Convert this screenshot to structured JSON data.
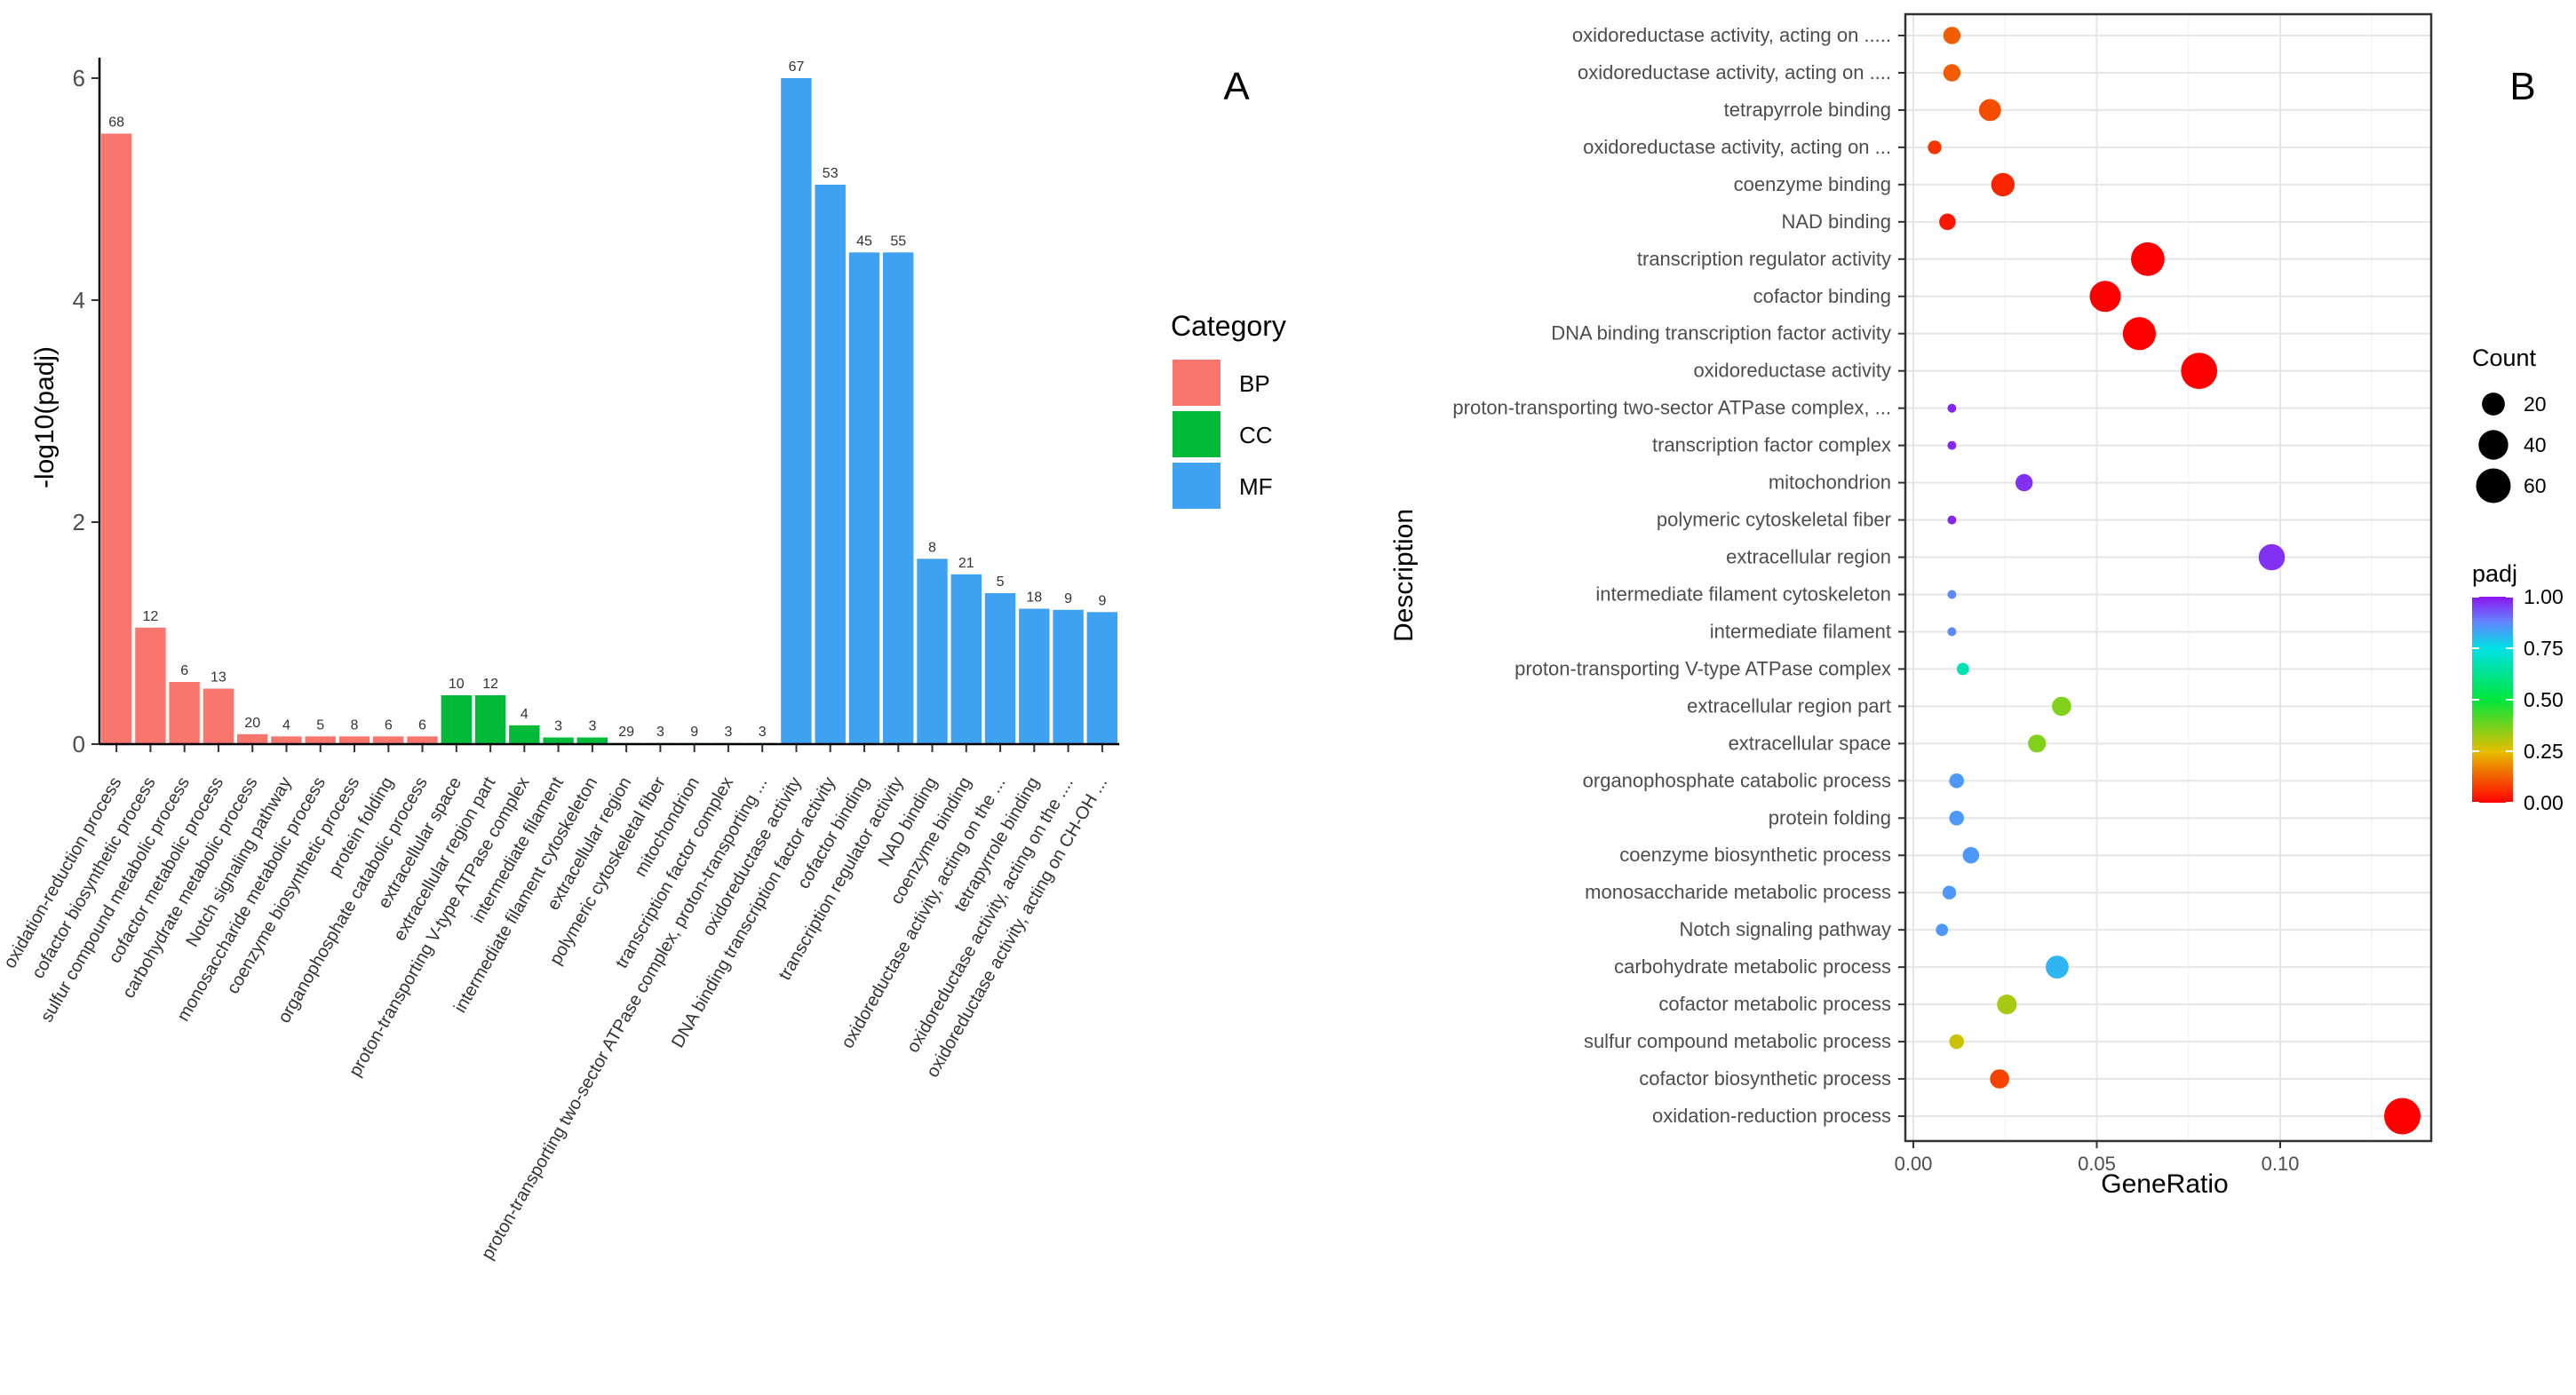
{
  "chart_data": [
    {
      "panel": "A",
      "type": "bar",
      "ylabel": "-log10(padj)",
      "xlabel": "",
      "ylim": [
        0,
        6.1
      ],
      "yticks": [
        0,
        2,
        4,
        6
      ],
      "legend": {
        "title": "Category",
        "placement": "right",
        "items": [
          {
            "label": "BP",
            "color": "#F8766D"
          },
          {
            "label": "CC",
            "color": "#00BA38"
          },
          {
            "label": "MF",
            "color": "#3EA1F2"
          }
        ]
      },
      "bars": [
        {
          "label": "oxidation-reduction process",
          "value": 5.5,
          "count": "68",
          "category": "BP"
        },
        {
          "label": "cofactor biosynthetic process",
          "value": 1.05,
          "count": "12",
          "category": "BP"
        },
        {
          "label": "sulfur compound metabolic process",
          "value": 0.56,
          "count": "6",
          "category": "BP"
        },
        {
          "label": "cofactor metabolic process",
          "value": 0.5,
          "count": "13",
          "category": "BP"
        },
        {
          "label": "carbohydrate metabolic process",
          "value": 0.09,
          "count": "20",
          "category": "BP"
        },
        {
          "label": "Notch signaling pathway",
          "value": 0.07,
          "count": "4",
          "category": "BP"
        },
        {
          "label": "monosaccharide metabolic process",
          "value": 0.07,
          "count": "5",
          "category": "BP"
        },
        {
          "label": "coenzyme biosynthetic process",
          "value": 0.07,
          "count": "8",
          "category": "BP"
        },
        {
          "label": "protein folding",
          "value": 0.07,
          "count": "6",
          "category": "BP"
        },
        {
          "label": "organophosphate catabolic process",
          "value": 0.07,
          "count": "6",
          "category": "BP"
        },
        {
          "label": "extracellular space",
          "value": 0.44,
          "count": "10",
          "category": "CC"
        },
        {
          "label": "extracellular region part",
          "value": 0.44,
          "count": "12",
          "category": "CC"
        },
        {
          "label": "proton-transporting V-type ATPase complex",
          "value": 0.17,
          "count": "4",
          "category": "CC"
        },
        {
          "label": "intermediate filament",
          "value": 0.06,
          "count": "3",
          "category": "CC"
        },
        {
          "label": "intermediate filament cytoskeleton",
          "value": 0.06,
          "count": "3",
          "category": "CC"
        },
        {
          "label": "extracellular region",
          "value": 0.01,
          "count": "29",
          "category": "CC"
        },
        {
          "label": "polymeric cytoskeletal fiber",
          "value": 0.01,
          "count": "3",
          "category": "CC"
        },
        {
          "label": "mitochondrion",
          "value": 0.01,
          "count": "9",
          "category": "CC"
        },
        {
          "label": "transcription factor complex",
          "value": 0.01,
          "count": "3",
          "category": "CC"
        },
        {
          "label": "proton-transporting two-sector ATPase complex, proton-transporting ...",
          "value": 0.01,
          "count": "3",
          "category": "CC"
        },
        {
          "label": "oxidoreductase activity",
          "value": 6.0,
          "count": "67",
          "category": "MF"
        },
        {
          "label": "DNA binding transcription factor activity",
          "value": 5.04,
          "count": "53",
          "category": "MF"
        },
        {
          "label": "cofactor binding",
          "value": 4.43,
          "count": "45",
          "category": "MF"
        },
        {
          "label": "transcription regulator activity",
          "value": 4.43,
          "count": "55",
          "category": "MF"
        },
        {
          "label": "NAD binding",
          "value": 1.67,
          "count": "8",
          "category": "MF"
        },
        {
          "label": "coenzyme binding",
          "value": 1.53,
          "count": "21",
          "category": "MF"
        },
        {
          "label": "oxidoreductase activity, acting on the ...",
          "value": 1.36,
          "count": "5",
          "category": "MF"
        },
        {
          "label": "tetrapyrrole binding",
          "value": 1.22,
          "count": "18",
          "category": "MF"
        },
        {
          "label": "oxidoreductase activity, acting on the ....",
          "value": 1.21,
          "count": "9",
          "category": "MF"
        },
        {
          "label": "oxidoreductase activity, acting on CH-OH ...",
          "value": 1.19,
          "count": "9",
          "category": "MF"
        }
      ]
    },
    {
      "panel": "B",
      "type": "scatter",
      "xlabel": "GeneRatio",
      "ylabel": "Description",
      "xlim": [
        0,
        0.138
      ],
      "xticks": [
        "0.00",
        "0.05",
        "0.10"
      ],
      "size_legend": {
        "title": "Count",
        "values": [
          20,
          40,
          60
        ]
      },
      "color_legend": {
        "title": "padj",
        "ticks": [
          "1.00",
          "0.75",
          "0.50",
          "0.25",
          "0.00"
        ],
        "range": [
          0,
          1
        ]
      },
      "points": [
        {
          "description": "oxidoreductase activity, acting on .....",
          "gene_ratio": 0.0105,
          "count": 9,
          "padj": 0.12
        },
        {
          "description": "oxidoreductase activity, acting on ....",
          "gene_ratio": 0.0105,
          "count": 9,
          "padj": 0.12
        },
        {
          "description": "tetrapyrrole binding",
          "gene_ratio": 0.0209,
          "count": 18,
          "padj": 0.1
        },
        {
          "description": "oxidoreductase activity, acting on ...",
          "gene_ratio": 0.0058,
          "count": 5,
          "padj": 0.07
        },
        {
          "description": "coenzyme binding",
          "gene_ratio": 0.0244,
          "count": 21,
          "padj": 0.05
        },
        {
          "description": "NAD binding",
          "gene_ratio": 0.0093,
          "count": 8,
          "padj": 0.03
        },
        {
          "description": "transcription regulator activity",
          "gene_ratio": 0.0639,
          "count": 55,
          "padj": 0.0
        },
        {
          "description": "cofactor binding",
          "gene_ratio": 0.0523,
          "count": 45,
          "padj": 0.0
        },
        {
          "description": "DNA binding transcription factor activity",
          "gene_ratio": 0.0616,
          "count": 53,
          "padj": 0.0
        },
        {
          "description": "oxidoreductase activity",
          "gene_ratio": 0.0779,
          "count": 67,
          "padj": 0.0
        },
        {
          "description": "proton-transporting two-sector ATPase complex, ...",
          "gene_ratio": 0.0105,
          "count": 3,
          "padj": 0.98
        },
        {
          "description": "transcription factor complex",
          "gene_ratio": 0.0105,
          "count": 3,
          "padj": 0.98
        },
        {
          "description": "mitochondrion",
          "gene_ratio": 0.0302,
          "count": 9,
          "padj": 0.97
        },
        {
          "description": "polymeric cytoskeletal fiber",
          "gene_ratio": 0.0105,
          "count": 3,
          "padj": 0.98
        },
        {
          "description": "extracellular region",
          "gene_ratio": 0.0977,
          "count": 29,
          "padj": 0.97
        },
        {
          "description": "intermediate filament cytoskeleton",
          "gene_ratio": 0.0105,
          "count": 3,
          "padj": 0.87
        },
        {
          "description": "intermediate filament",
          "gene_ratio": 0.0105,
          "count": 3,
          "padj": 0.87
        },
        {
          "description": "proton-transporting V-type ATPase complex",
          "gene_ratio": 0.0135,
          "count": 4,
          "padj": 0.68
        },
        {
          "description": "extracellular region part",
          "gene_ratio": 0.0404,
          "count": 12,
          "padj": 0.36
        },
        {
          "description": "extracellular space",
          "gene_ratio": 0.0337,
          "count": 10,
          "padj": 0.36
        },
        {
          "description": "organophosphate catabolic process",
          "gene_ratio": 0.0118,
          "count": 6,
          "padj": 0.85
        },
        {
          "description": "protein folding",
          "gene_ratio": 0.0118,
          "count": 6,
          "padj": 0.85
        },
        {
          "description": "coenzyme biosynthetic process",
          "gene_ratio": 0.0157,
          "count": 8,
          "padj": 0.85
        },
        {
          "description": "monosaccharide metabolic process",
          "gene_ratio": 0.0098,
          "count": 5,
          "padj": 0.85
        },
        {
          "description": "Notch signaling pathway",
          "gene_ratio": 0.0078,
          "count": 4,
          "padj": 0.85
        },
        {
          "description": "carbohydrate metabolic process",
          "gene_ratio": 0.0392,
          "count": 20,
          "padj": 0.81
        },
        {
          "description": "cofactor metabolic process",
          "gene_ratio": 0.0255,
          "count": 13,
          "padj": 0.32
        },
        {
          "description": "sulfur compound metabolic process",
          "gene_ratio": 0.0118,
          "count": 6,
          "padj": 0.28
        },
        {
          "description": "cofactor biosynthetic process",
          "gene_ratio": 0.0235,
          "count": 12,
          "padj": 0.09
        },
        {
          "description": "oxidation-reduction process",
          "gene_ratio": 0.1333,
          "count": 68,
          "padj": 0.0
        }
      ]
    }
  ]
}
